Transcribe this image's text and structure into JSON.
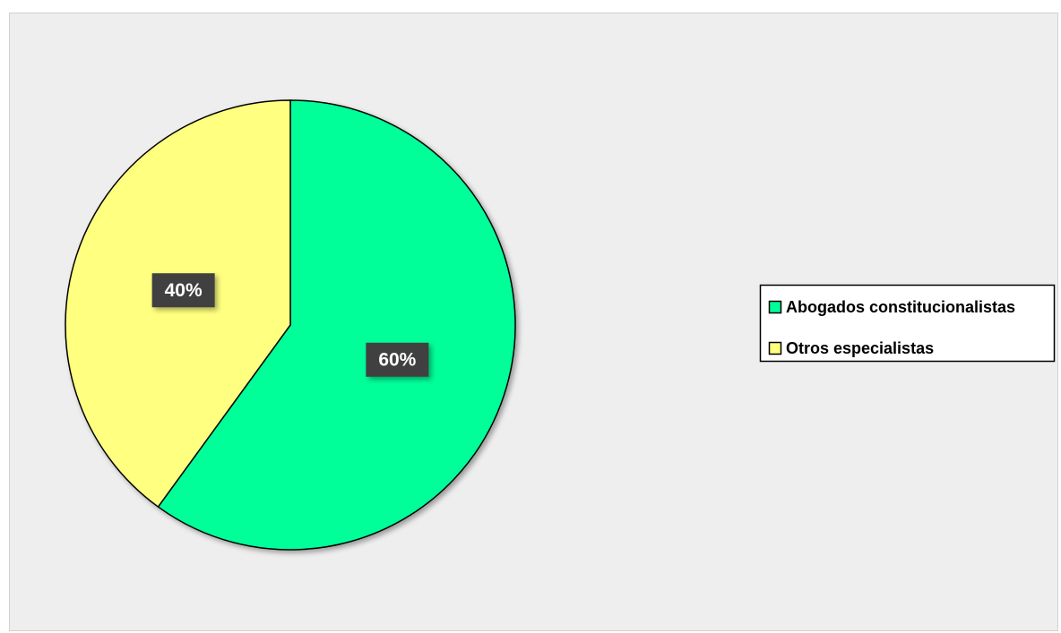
{
  "chart_data": {
    "type": "pie",
    "categories": [
      "Abogados constitucionalistas",
      "Otros especialistas"
    ],
    "values": [
      60,
      40
    ],
    "value_labels": [
      "60%",
      "40%"
    ],
    "colors": [
      "#00FF99",
      "#FFFF80"
    ],
    "legend": "right"
  }
}
